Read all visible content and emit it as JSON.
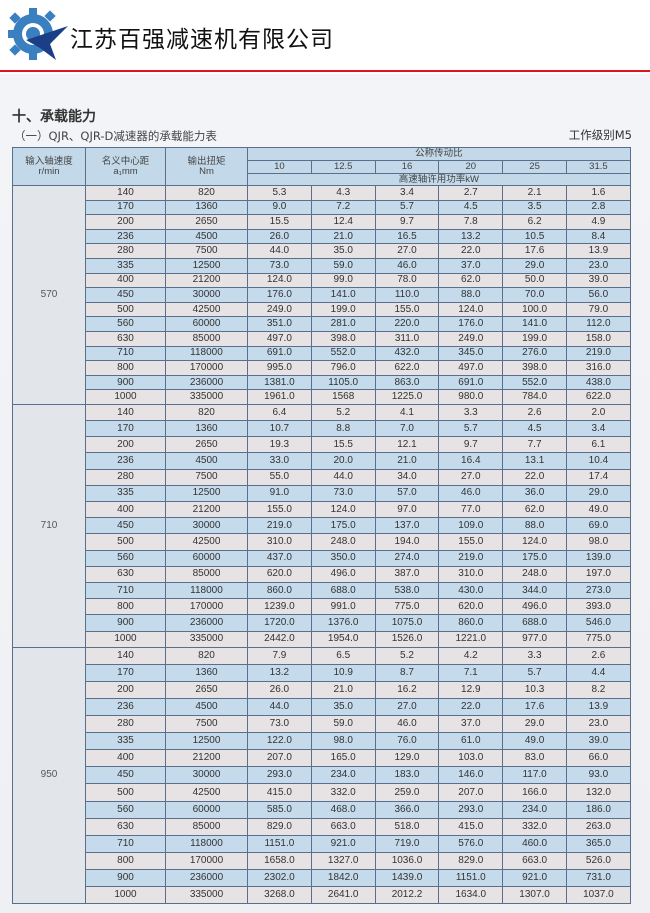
{
  "header": {
    "company": "江苏百强减速机有限公司",
    "logo": "gear-star-logo",
    "accent": "#e0141c"
  },
  "section_title": "十、承载能力",
  "subtitle": "（一）QJR、QJR-D减速器的承载能力表",
  "work_grade": "工作级别M5",
  "table": {
    "col_speed": "输入轴速度",
    "col_speed_unit": "r/min",
    "col_center": "名义中心距",
    "col_center_unit": "a₁mm",
    "col_torque": "输出扭矩",
    "col_torque_unit": "Nm",
    "ratio_header": "公称传动比",
    "ratios": [
      "10",
      "12.5",
      "16",
      "20",
      "25",
      "31.5"
    ],
    "power_header": "高速轴许用功率kW",
    "groups": [
      {
        "speed": "570",
        "rows": [
          [
            "140",
            "820",
            "5.3",
            "4.3",
            "3.4",
            "2.7",
            "2.1",
            "1.6"
          ],
          [
            "170",
            "1360",
            "9.0",
            "7.2",
            "5.7",
            "4.5",
            "3.5",
            "2.8"
          ],
          [
            "200",
            "2650",
            "15.5",
            "12.4",
            "9.7",
            "7.8",
            "6.2",
            "4.9"
          ],
          [
            "236",
            "4500",
            "26.0",
            "21.0",
            "16.5",
            "13.2",
            "10.5",
            "8.4"
          ],
          [
            "280",
            "7500",
            "44.0",
            "35.0",
            "27.0",
            "22.0",
            "17.6",
            "13.9"
          ],
          [
            "335",
            "12500",
            "73.0",
            "59.0",
            "46.0",
            "37.0",
            "29.0",
            "23.0"
          ],
          [
            "400",
            "21200",
            "124.0",
            "99.0",
            "78.0",
            "62.0",
            "50.0",
            "39.0"
          ],
          [
            "450",
            "30000",
            "176.0",
            "141.0",
            "110.0",
            "88.0",
            "70.0",
            "56.0"
          ],
          [
            "500",
            "42500",
            "249.0",
            "199.0",
            "155.0",
            "124.0",
            "100.0",
            "79.0"
          ],
          [
            "560",
            "60000",
            "351.0",
            "281.0",
            "220.0",
            "176.0",
            "141.0",
            "112.0"
          ],
          [
            "630",
            "85000",
            "497.0",
            "398.0",
            "311.0",
            "249.0",
            "199.0",
            "158.0"
          ],
          [
            "710",
            "118000",
            "691.0",
            "552.0",
            "432.0",
            "345.0",
            "276.0",
            "219.0"
          ],
          [
            "800",
            "170000",
            "995.0",
            "796.0",
            "622.0",
            "497.0",
            "398.0",
            "316.0"
          ],
          [
            "900",
            "236000",
            "1381.0",
            "1105.0",
            "863.0",
            "691.0",
            "552.0",
            "438.0"
          ],
          [
            "1000",
            "335000",
            "1961.0",
            "1568",
            "1225.0",
            "980.0",
            "784.0",
            "622.0"
          ]
        ]
      },
      {
        "speed": "710",
        "rows": [
          [
            "140",
            "820",
            "6.4",
            "5.2",
            "4.1",
            "3.3",
            "2.6",
            "2.0"
          ],
          [
            "170",
            "1360",
            "10.7",
            "8.8",
            "7.0",
            "5.7",
            "4.5",
            "3.4"
          ],
          [
            "200",
            "2650",
            "19.3",
            "15.5",
            "12.1",
            "9.7",
            "7.7",
            "6.1"
          ],
          [
            "236",
            "4500",
            "33.0",
            "20.0",
            "21.0",
            "16.4",
            "13.1",
            "10.4"
          ],
          [
            "280",
            "7500",
            "55.0",
            "44.0",
            "34.0",
            "27.0",
            "22.0",
            "17.4"
          ],
          [
            "335",
            "12500",
            "91.0",
            "73.0",
            "57.0",
            "46.0",
            "36.0",
            "29.0"
          ],
          [
            "400",
            "21200",
            "155.0",
            "124.0",
            "97.0",
            "77.0",
            "62.0",
            "49.0"
          ],
          [
            "450",
            "30000",
            "219.0",
            "175.0",
            "137.0",
            "109.0",
            "88.0",
            "69.0"
          ],
          [
            "500",
            "42500",
            "310.0",
            "248.0",
            "194.0",
            "155.0",
            "124.0",
            "98.0"
          ],
          [
            "560",
            "60000",
            "437.0",
            "350.0",
            "274.0",
            "219.0",
            "175.0",
            "139.0"
          ],
          [
            "630",
            "85000",
            "620.0",
            "496.0",
            "387.0",
            "310.0",
            "248.0",
            "197.0"
          ],
          [
            "710",
            "118000",
            "860.0",
            "688.0",
            "538.0",
            "430.0",
            "344.0",
            "273.0"
          ],
          [
            "800",
            "170000",
            "1239.0",
            "991.0",
            "775.0",
            "620.0",
            "496.0",
            "393.0"
          ],
          [
            "900",
            "236000",
            "1720.0",
            "1376.0",
            "1075.0",
            "860.0",
            "688.0",
            "546.0"
          ],
          [
            "1000",
            "335000",
            "2442.0",
            "1954.0",
            "1526.0",
            "1221.0",
            "977.0",
            "775.0"
          ]
        ]
      },
      {
        "speed": "950",
        "rows": [
          [
            "140",
            "820",
            "7.9",
            "6.5",
            "5.2",
            "4.2",
            "3.3",
            "2.6"
          ],
          [
            "170",
            "1360",
            "13.2",
            "10.9",
            "8.7",
            "7.1",
            "5.7",
            "4.4"
          ],
          [
            "200",
            "2650",
            "26.0",
            "21.0",
            "16.2",
            "12.9",
            "10.3",
            "8.2"
          ],
          [
            "236",
            "4500",
            "44.0",
            "35.0",
            "27.0",
            "22.0",
            "17.6",
            "13.9"
          ],
          [
            "280",
            "7500",
            "73.0",
            "59.0",
            "46.0",
            "37.0",
            "29.0",
            "23.0"
          ],
          [
            "335",
            "12500",
            "122.0",
            "98.0",
            "76.0",
            "61.0",
            "49.0",
            "39.0"
          ],
          [
            "400",
            "21200",
            "207.0",
            "165.0",
            "129.0",
            "103.0",
            "83.0",
            "66.0"
          ],
          [
            "450",
            "30000",
            "293.0",
            "234.0",
            "183.0",
            "146.0",
            "117.0",
            "93.0"
          ],
          [
            "500",
            "42500",
            "415.0",
            "332.0",
            "259.0",
            "207.0",
            "166.0",
            "132.0"
          ],
          [
            "560",
            "60000",
            "585.0",
            "468.0",
            "366.0",
            "293.0",
            "234.0",
            "186.0"
          ],
          [
            "630",
            "85000",
            "829.0",
            "663.0",
            "518.0",
            "415.0",
            "332.0",
            "263.0"
          ],
          [
            "710",
            "118000",
            "1151.0",
            "921.0",
            "719.0",
            "576.0",
            "460.0",
            "365.0"
          ],
          [
            "800",
            "170000",
            "1658.0",
            "1327.0",
            "1036.0",
            "829.0",
            "663.0",
            "526.0"
          ],
          [
            "900",
            "236000",
            "2302.0",
            "1842.0",
            "1439.0",
            "1151.0",
            "921.0",
            "731.0"
          ],
          [
            "1000",
            "335000",
            "3268.0",
            "2641.0",
            "2012.2",
            "1634.0",
            "1307.0",
            "1037.0"
          ]
        ]
      }
    ]
  }
}
